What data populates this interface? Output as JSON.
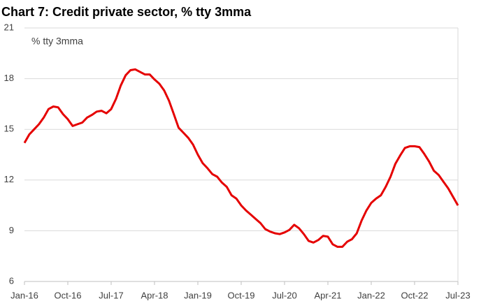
{
  "chart_data": {
    "type": "line",
    "title": "Chart 7: Credit private sector, % tty 3mma",
    "annotation": "% tty 3mma",
    "categories": [
      "Jan-16",
      null,
      null,
      null,
      null,
      null,
      null,
      null,
      null,
      "Oct-16",
      null,
      null,
      null,
      null,
      null,
      null,
      null,
      null,
      "Jul-17",
      null,
      null,
      null,
      null,
      null,
      null,
      null,
      null,
      "Apr-18",
      null,
      null,
      null,
      null,
      null,
      null,
      null,
      null,
      "Jan-19",
      null,
      null,
      null,
      null,
      null,
      null,
      null,
      null,
      "Oct-19",
      null,
      null,
      null,
      null,
      null,
      null,
      null,
      null,
      "Jul-20",
      null,
      null,
      null,
      null,
      null,
      null,
      null,
      null,
      "Apr-21",
      null,
      null,
      null,
      null,
      null,
      null,
      null,
      null,
      "Jan-22",
      null,
      null,
      null,
      null,
      null,
      null,
      null,
      null,
      "Oct-22",
      null,
      null,
      null,
      null,
      null,
      null,
      null,
      null,
      "Jul-23"
    ],
    "series": [
      {
        "name": "Credit private sector",
        "color": "#e50000",
        "values": [
          14.2,
          14.7,
          15.0,
          15.3,
          15.7,
          16.2,
          16.35,
          16.3,
          15.9,
          15.6,
          15.2,
          15.3,
          15.4,
          15.7,
          15.85,
          16.05,
          16.1,
          15.95,
          16.2,
          16.8,
          17.6,
          18.2,
          18.5,
          18.55,
          18.4,
          18.25,
          18.25,
          17.95,
          17.7,
          17.3,
          16.7,
          15.9,
          15.1,
          14.8,
          14.5,
          14.1,
          13.5,
          13.0,
          12.7,
          12.35,
          12.2,
          11.85,
          11.6,
          11.1,
          10.9,
          10.5,
          10.2,
          9.95,
          9.7,
          9.45,
          9.1,
          8.95,
          8.85,
          8.8,
          8.9,
          9.05,
          9.35,
          9.15,
          8.8,
          8.4,
          8.3,
          8.45,
          8.7,
          8.65,
          8.2,
          8.05,
          8.05,
          8.35,
          8.5,
          8.85,
          9.6,
          10.2,
          10.65,
          10.9,
          11.1,
          11.6,
          12.2,
          12.95,
          13.45,
          13.9,
          14.0,
          14.0,
          13.95,
          13.55,
          13.1,
          12.55,
          12.3,
          11.9,
          11.5,
          11.0,
          10.5
        ]
      }
    ],
    "ylim": [
      6,
      21
    ],
    "yticks": [
      6,
      9,
      12,
      15,
      18,
      21
    ],
    "grid": true
  }
}
